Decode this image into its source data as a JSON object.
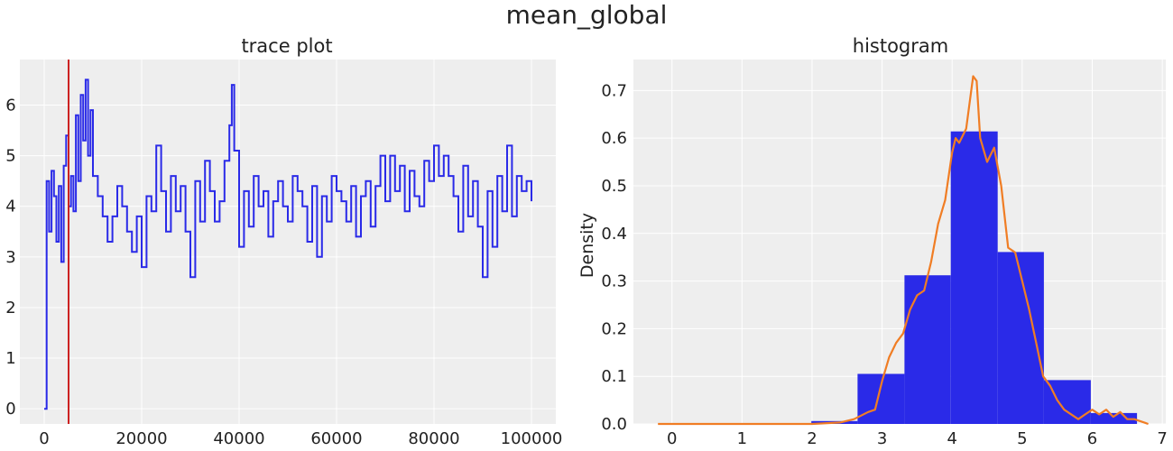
{
  "figure": {
    "title": "mean_global"
  },
  "chart_data": [
    {
      "type": "line",
      "title": "trace plot",
      "xlabel": "",
      "ylabel": "",
      "xlim": [
        -5000,
        105000
      ],
      "ylim": [
        -0.3,
        6.9
      ],
      "xticks": [
        0,
        20000,
        40000,
        60000,
        80000,
        100000
      ],
      "yticks": [
        0,
        1,
        2,
        3,
        4,
        5,
        6
      ],
      "grid": true,
      "colors": {
        "line": "#2a2ae8",
        "marker": "#cc2222",
        "background": "#eeeeee"
      },
      "vline": 5000,
      "series": [
        {
          "x": [
            0,
            500,
            1000,
            1500,
            2000,
            2500,
            3000,
            3500,
            4000,
            4500,
            5000,
            5500,
            6000,
            6500,
            7000,
            7500,
            8000,
            8500,
            9000,
            9500,
            10000,
            11000,
            12000,
            13000,
            14000,
            15000,
            16000,
            17000,
            18000,
            19000,
            20000,
            21000,
            22000,
            23000,
            24000,
            25000,
            26000,
            27000,
            28000,
            29000,
            30000,
            31000,
            32000,
            33000,
            34000,
            35000,
            36000,
            37000,
            38000,
            38500,
            39000,
            40000,
            41000,
            42000,
            43000,
            44000,
            45000,
            46000,
            47000,
            48000,
            49000,
            50000,
            51000,
            52000,
            53000,
            54000,
            55000,
            56000,
            57000,
            58000,
            59000,
            60000,
            61000,
            62000,
            63000,
            64000,
            65000,
            66000,
            67000,
            68000,
            69000,
            70000,
            71000,
            72000,
            73000,
            74000,
            75000,
            76000,
            77000,
            78000,
            79000,
            80000,
            81000,
            82000,
            83000,
            84000,
            85000,
            86000,
            87000,
            88000,
            89000,
            90000,
            91000,
            92000,
            93000,
            94000,
            95000,
            96000,
            97000,
            98000,
            99000,
            100000
          ],
          "y": [
            0.0,
            4.5,
            3.5,
            4.7,
            4.2,
            3.3,
            4.4,
            2.9,
            4.8,
            5.4,
            4.0,
            4.6,
            3.9,
            5.8,
            4.5,
            6.2,
            5.3,
            6.5,
            5.0,
            5.9,
            4.6,
            4.2,
            3.8,
            3.3,
            3.8,
            4.4,
            4.0,
            3.5,
            3.1,
            3.8,
            2.8,
            4.2,
            3.9,
            5.2,
            4.3,
            3.5,
            4.6,
            3.9,
            4.4,
            3.5,
            2.6,
            4.5,
            3.7,
            4.9,
            4.3,
            3.7,
            4.1,
            4.9,
            5.6,
            6.4,
            5.1,
            3.2,
            4.3,
            3.6,
            4.6,
            4.0,
            4.3,
            3.4,
            4.1,
            4.5,
            4.0,
            3.7,
            4.6,
            4.3,
            4.0,
            3.3,
            4.4,
            3.0,
            4.2,
            3.7,
            4.6,
            4.3,
            4.1,
            3.7,
            4.4,
            3.4,
            4.2,
            4.5,
            3.6,
            4.4,
            5.0,
            4.1,
            5.0,
            4.3,
            4.8,
            3.9,
            4.7,
            4.2,
            4.0,
            4.9,
            4.5,
            5.2,
            4.6,
            5.0,
            4.6,
            4.2,
            3.5,
            4.8,
            3.8,
            4.5,
            3.6,
            2.6,
            4.3,
            3.2,
            4.6,
            3.9,
            5.2,
            3.8,
            4.6,
            4.3,
            4.5,
            4.1
          ]
        }
      ]
    },
    {
      "type": "bar",
      "title": "histogram",
      "xlabel": "",
      "ylabel": "Density",
      "xlim": [
        -0.55,
        7.05
      ],
      "ylim": [
        0,
        0.765
      ],
      "xticks": [
        0,
        1,
        2,
        3,
        4,
        5,
        6,
        7
      ],
      "yticks": [
        0.0,
        0.1,
        0.2,
        0.3,
        0.4,
        0.5,
        0.6,
        0.7
      ],
      "grid": true,
      "colors": {
        "bars": "#2a2ae8",
        "density": "#f07d24",
        "background": "#eeeeee"
      },
      "bins": [
        {
          "x0": 1.99,
          "x1": 2.65,
          "value": 0.006
        },
        {
          "x0": 2.65,
          "x1": 3.32,
          "value": 0.105
        },
        {
          "x0": 3.32,
          "x1": 3.98,
          "value": 0.312
        },
        {
          "x0": 3.98,
          "x1": 4.65,
          "value": 0.614
        },
        {
          "x0": 4.65,
          "x1": 5.31,
          "value": 0.361
        },
        {
          "x0": 5.31,
          "x1": 5.98,
          "value": 0.092
        },
        {
          "x0": 5.98,
          "x1": 6.64,
          "value": 0.023
        }
      ],
      "density": {
        "x": [
          -0.2,
          1.0,
          2.0,
          2.4,
          2.6,
          2.8,
          2.9,
          3.0,
          3.1,
          3.2,
          3.3,
          3.4,
          3.5,
          3.6,
          3.7,
          3.8,
          3.9,
          4.0,
          4.05,
          4.1,
          4.2,
          4.3,
          4.35,
          4.4,
          4.5,
          4.6,
          4.7,
          4.8,
          4.9,
          5.0,
          5.1,
          5.2,
          5.3,
          5.4,
          5.5,
          5.6,
          5.7,
          5.8,
          5.9,
          6.0,
          6.1,
          6.2,
          6.3,
          6.4,
          6.5,
          6.6,
          6.8
        ],
        "y": [
          0.0,
          0.0,
          0.0,
          0.003,
          0.01,
          0.025,
          0.03,
          0.09,
          0.14,
          0.17,
          0.19,
          0.24,
          0.27,
          0.28,
          0.34,
          0.42,
          0.47,
          0.57,
          0.6,
          0.59,
          0.62,
          0.73,
          0.72,
          0.6,
          0.55,
          0.58,
          0.5,
          0.37,
          0.36,
          0.3,
          0.24,
          0.17,
          0.1,
          0.08,
          0.05,
          0.03,
          0.02,
          0.01,
          0.02,
          0.03,
          0.02,
          0.03,
          0.015,
          0.025,
          0.01,
          0.01,
          0.0
        ]
      }
    }
  ]
}
